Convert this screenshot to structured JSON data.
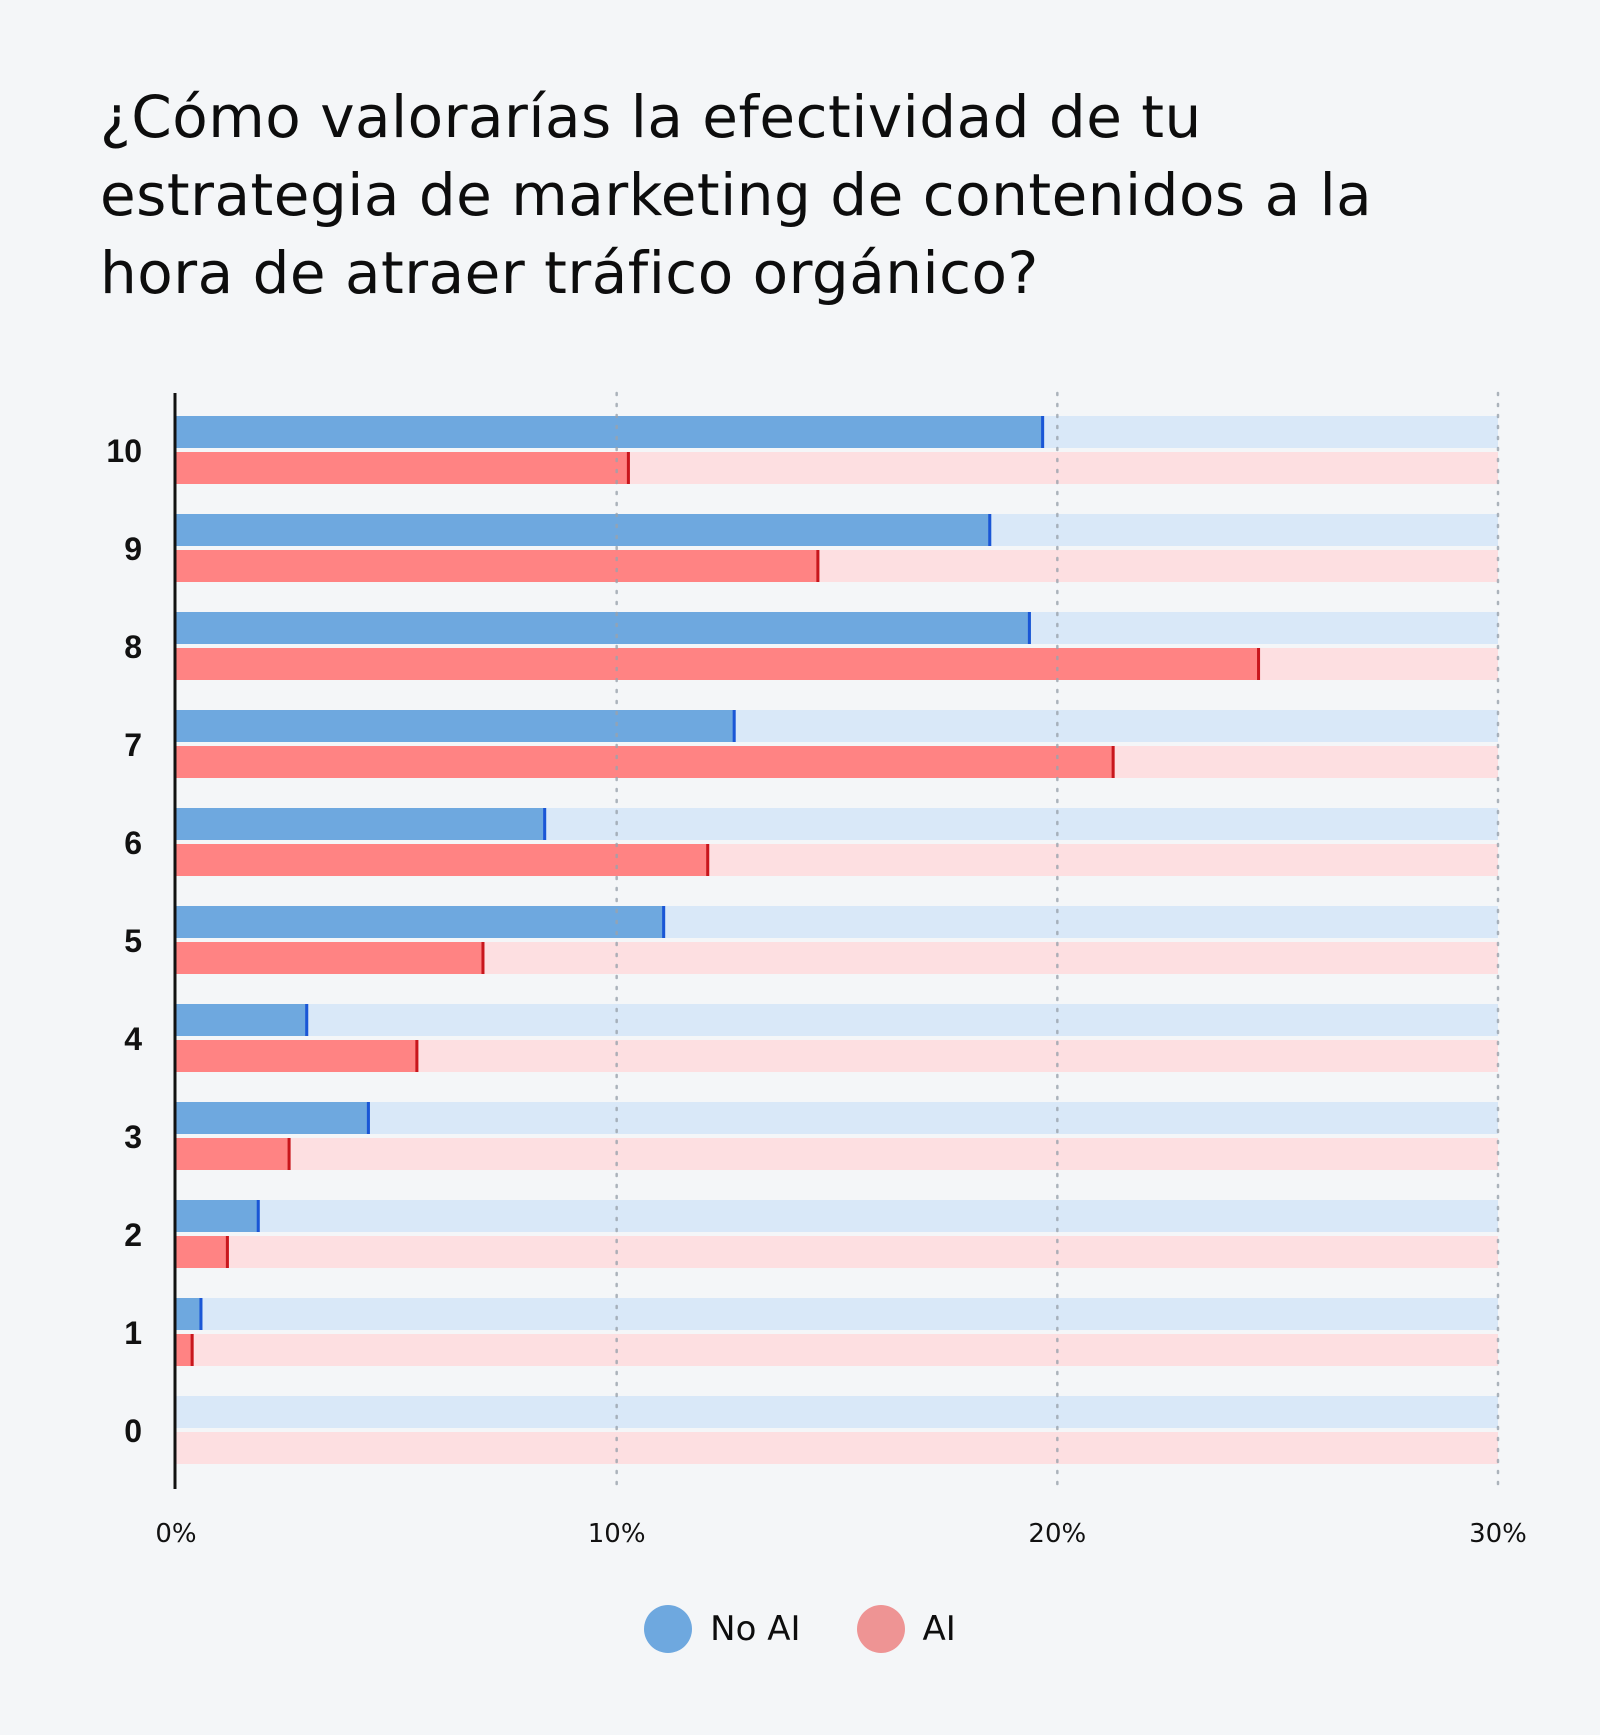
{
  "chart_data": {
    "type": "bar",
    "orientation": "horizontal",
    "title": "¿Cómo valorarías la efectividad de tu estrategia de marketing de contenidos a la hora de atraer tráfico orgánico?",
    "categories": [
      "10",
      "9",
      "8",
      "7",
      "6",
      "5",
      "4",
      "3",
      "2",
      "1",
      "0"
    ],
    "series": [
      {
        "name": "No AI",
        "color": "#6ea8df",
        "track_color": "#d9e8f8",
        "marker_color": "#1a56d6",
        "values": [
          19.7,
          18.5,
          19.4,
          12.7,
          8.4,
          11.1,
          3.0,
          4.4,
          1.9,
          0.6,
          0.0
        ]
      },
      {
        "name": "AI",
        "color": "#ff8383",
        "track_color": "#fddfe1",
        "marker_color": "#c8161c",
        "values": [
          10.3,
          14.6,
          24.6,
          21.3,
          12.1,
          7.0,
          5.5,
          2.6,
          1.2,
          0.4,
          0.0
        ]
      }
    ],
    "xlim": [
      0,
      30
    ],
    "xticks": [
      "0%",
      "10%",
      "20%",
      "30%"
    ],
    "xtick_values": [
      0,
      10,
      20,
      30
    ],
    "grid": true,
    "legend_position": "bottom-center"
  }
}
